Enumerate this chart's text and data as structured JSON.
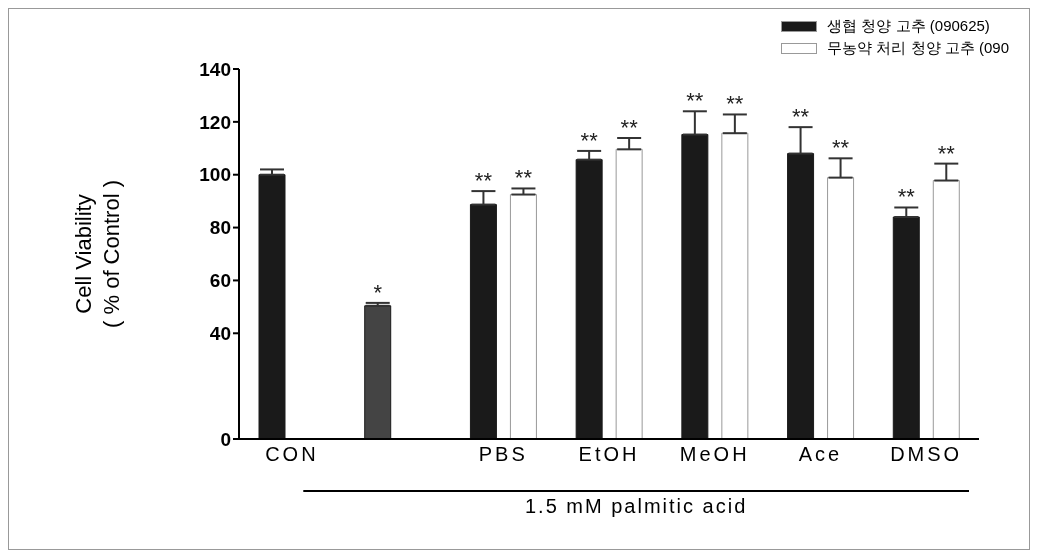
{
  "chart_data": {
    "type": "bar",
    "ylabel": "Cell Viability\n( % of Control )",
    "categories": [
      "CON",
      null,
      "PBS",
      "EtOH",
      "MeOH",
      "Ace",
      "DMSO"
    ],
    "series": [
      {
        "name": "생협 청양 고추 (090625)",
        "color": "#1a1a1a",
        "colors": [
          "#1a1a1a",
          "#444444",
          "#1a1a1a",
          "#1a1a1a",
          "#1a1a1a",
          "#1a1a1a",
          "#1a1a1a"
        ],
        "values": [
          100,
          50.4,
          88.7,
          105.7,
          115.2,
          108,
          84
        ],
        "errors": [
          [
            100,
            102
          ],
          [
            50.4,
            51.5
          ],
          [
            88.7,
            93.8
          ],
          [
            105.7,
            109
          ],
          [
            115.2,
            124
          ],
          [
            108,
            118
          ],
          [
            84,
            87.6
          ]
        ],
        "value_labels": [
          null,
          "*",
          "**",
          "**",
          "**",
          "**",
          "**"
        ]
      },
      {
        "name": "무농약 처리 청양 고추 (090",
        "color": "#ffffff",
        "values": [
          null,
          null,
          92.5,
          109.6,
          115.7,
          98.9,
          97.8
        ],
        "errors": [
          null,
          null,
          [
            92.5,
            94.8
          ],
          [
            109.6,
            113.9
          ],
          [
            115.7,
            122.8
          ],
          [
            98.9,
            106.2
          ],
          [
            97.8,
            104.2
          ]
        ],
        "value_labels": [
          null,
          null,
          "**",
          "**",
          "**",
          "**",
          "**"
        ]
      }
    ],
    "ylim": [
      0,
      140
    ],
    "yticks": [
      0,
      40,
      60,
      80,
      100,
      120,
      140
    ],
    "legend": "top right",
    "annotations": [
      "1.5 mM palmitic acid"
    ]
  }
}
